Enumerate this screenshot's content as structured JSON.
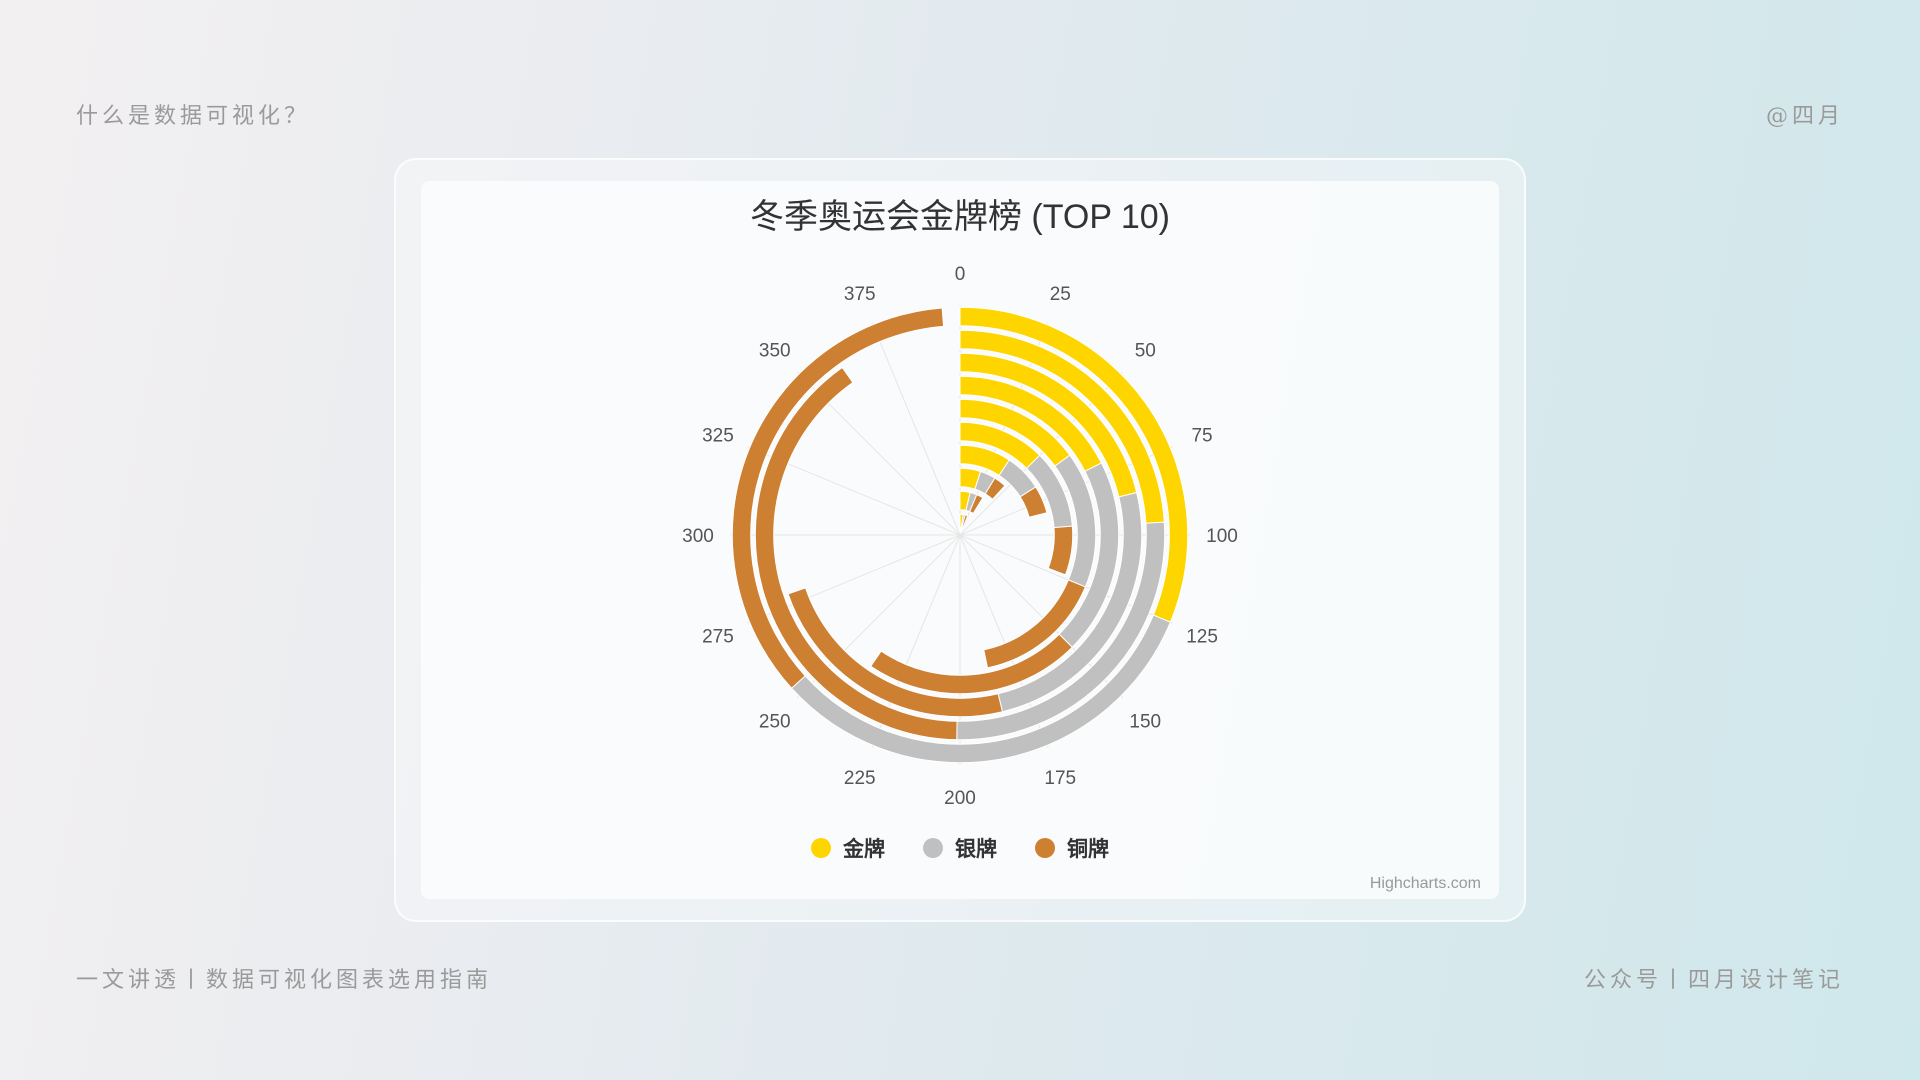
{
  "page": {
    "top_left": "什么是数据可视化？",
    "top_right": "@四月",
    "bottom_left": "一文讲透丨数据可视化图表选用指南",
    "bottom_right": "公众号丨四月设计笔记"
  },
  "chart": {
    "credits": "Highcharts.com"
  },
  "chart_data": {
    "type": "bar",
    "polar": true,
    "stacking": "normal",
    "title": "冬季奥运会金牌榜 (TOP 10)",
    "angle_axis": {
      "min": 0,
      "max": 400,
      "ticks": [
        0,
        25,
        50,
        75,
        100,
        125,
        150,
        175,
        200,
        225,
        250,
        275,
        300,
        325,
        350,
        375
      ]
    },
    "rings": 10,
    "series": [
      {
        "name": "金牌",
        "color": "#ffd500",
        "values": [
          10,
          15,
          20,
          37,
          50,
          60,
          70,
          85,
          96,
          125
        ]
      },
      {
        "name": "银牌",
        "color": "#c0c0c0",
        "values": [
          6,
          10,
          15,
          27,
          45,
          65,
          80,
          100,
          105,
          128
        ]
      },
      {
        "name": "铜牌",
        "color": "#cd7f32",
        "values": [
          8,
          10,
          12,
          20,
          28,
          62,
          88,
          94,
          160,
          142
        ]
      }
    ],
    "legend_position": "bottom-center"
  }
}
